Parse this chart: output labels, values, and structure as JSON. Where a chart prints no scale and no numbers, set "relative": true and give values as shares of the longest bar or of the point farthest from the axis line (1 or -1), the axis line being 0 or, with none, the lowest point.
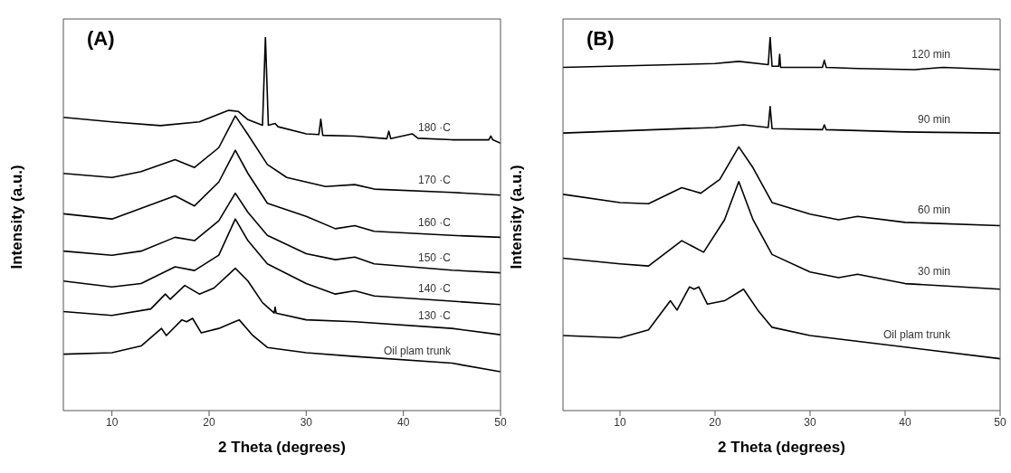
{
  "chart_data": [
    {
      "type": "line",
      "title": "(A)",
      "xlabel": "2 Theta (degrees)",
      "ylabel": "Intensity (a.u.)",
      "relative": true,
      "xlim": [
        5,
        50
      ],
      "xticks": [
        10,
        20,
        30,
        40,
        50
      ],
      "tick_labels": "x",
      "marker": "none",
      "line_style": "solid",
      "series": [
        {
          "name": "180 ·C",
          "color": "#000000",
          "x": [
            5,
            10,
            15,
            19,
            22,
            23,
            24,
            25.5,
            25.8,
            26.1,
            26.8,
            27.1,
            30,
            31.3,
            31.5,
            31.7,
            35,
            38.3,
            38.5,
            38.7,
            40.9,
            41.5,
            45,
            48.8,
            49,
            49.2,
            50
          ],
          "values": [
            0.785,
            0.773,
            0.763,
            0.773,
            0.804,
            0.801,
            0.779,
            0.764,
            1.0,
            0.764,
            0.769,
            0.76,
            0.741,
            0.739,
            0.78,
            0.737,
            0.735,
            0.728,
            0.748,
            0.728,
            0.741,
            0.729,
            0.725,
            0.725,
            0.735,
            0.725,
            0.716
          ]
        },
        {
          "name": "170 ·C",
          "color": "#000000",
          "x": [
            5,
            10,
            13,
            16.5,
            18.5,
            21,
            22.7,
            24,
            26,
            28,
            32,
            35,
            37,
            45,
            50
          ],
          "values": [
            0.635,
            0.624,
            0.64,
            0.672,
            0.651,
            0.704,
            0.789,
            0.739,
            0.659,
            0.624,
            0.6,
            0.605,
            0.593,
            0.584,
            0.577
          ]
        },
        {
          "name": "160 ·C",
          "color": "#000000",
          "x": [
            5,
            10,
            16.5,
            18.5,
            21,
            22.7,
            24,
            26,
            30,
            33,
            35,
            37,
            45,
            50
          ],
          "values": [
            0.527,
            0.513,
            0.575,
            0.548,
            0.612,
            0.697,
            0.635,
            0.555,
            0.52,
            0.487,
            0.495,
            0.48,
            0.469,
            0.464
          ]
        },
        {
          "name": "150 ·C",
          "color": "#000000",
          "x": [
            5,
            10,
            13,
            16.5,
            18.5,
            21,
            22.7,
            24,
            26,
            30,
            33,
            35,
            37,
            45,
            50
          ],
          "values": [
            0.427,
            0.416,
            0.427,
            0.464,
            0.455,
            0.508,
            0.582,
            0.531,
            0.469,
            0.42,
            0.404,
            0.411,
            0.393,
            0.376,
            0.369
          ]
        },
        {
          "name": "140 ·C",
          "color": "#000000",
          "x": [
            5,
            10,
            13,
            16.5,
            18.5,
            21,
            22.7,
            24,
            26,
            30,
            33,
            35,
            37,
            45,
            50
          ],
          "values": [
            0.347,
            0.331,
            0.34,
            0.385,
            0.375,
            0.416,
            0.513,
            0.455,
            0.393,
            0.34,
            0.312,
            0.321,
            0.307,
            0.293,
            0.284
          ]
        },
        {
          "name": "130 ·C",
          "color": "#000000",
          "x": [
            5,
            10,
            14,
            15.5,
            16,
            17.5,
            19,
            20.5,
            22.7,
            24,
            25.5,
            26.7,
            26.8,
            26.9,
            30,
            35,
            45,
            50
          ],
          "values": [
            0.265,
            0.255,
            0.272,
            0.312,
            0.298,
            0.335,
            0.312,
            0.328,
            0.381,
            0.347,
            0.289,
            0.261,
            0.277,
            0.261,
            0.243,
            0.238,
            0.22,
            0.203
          ]
        },
        {
          "name": "Oil plam trunk",
          "color": "#000000",
          "x": [
            5,
            10,
            13,
            15.1,
            15.6,
            17.2,
            17.7,
            18.3,
            19.2,
            21,
            23.1,
            24.5,
            26,
            30,
            35,
            45,
            50
          ],
          "values": [
            0.151,
            0.155,
            0.173,
            0.22,
            0.201,
            0.243,
            0.238,
            0.247,
            0.208,
            0.22,
            0.243,
            0.201,
            0.169,
            0.155,
            0.145,
            0.127,
            0.104
          ]
        }
      ]
    },
    {
      "type": "line",
      "title": "(B)",
      "xlabel": "2 Theta (degrees)",
      "ylabel": "Intensity (a.u.)",
      "relative": true,
      "xlim": [
        4,
        50
      ],
      "xticks": [
        10,
        20,
        30,
        40,
        50
      ],
      "tick_labels": "x",
      "marker": "none",
      "line_style": "solid",
      "series": [
        {
          "name": "120 min",
          "color": "#000000",
          "x": [
            4,
            20,
            22.5,
            25.6,
            25.8,
            26.0,
            26.7,
            26.8,
            26.9,
            31.3,
            31.5,
            31.7,
            35,
            41,
            44,
            50
          ],
          "values": [
            0.919,
            0.929,
            0.935,
            0.926,
            1.0,
            0.922,
            0.922,
            0.954,
            0.919,
            0.919,
            0.938,
            0.919,
            0.916,
            0.913,
            0.919,
            0.913
          ]
        },
        {
          "name": "90 min",
          "color": "#000000",
          "x": [
            4,
            20,
            23,
            25.6,
            25.8,
            26.0,
            31.3,
            31.5,
            31.7,
            40,
            50
          ],
          "values": [
            0.743,
            0.758,
            0.765,
            0.758,
            0.814,
            0.755,
            0.752,
            0.765,
            0.752,
            0.746,
            0.743
          ]
        },
        {
          "name": "60 min",
          "color": "#000000",
          "x": [
            4,
            10,
            13,
            16.5,
            18.5,
            20.5,
            22.5,
            24,
            26,
            30,
            33,
            35,
            40,
            50
          ],
          "values": [
            0.579,
            0.557,
            0.554,
            0.597,
            0.582,
            0.619,
            0.706,
            0.65,
            0.557,
            0.526,
            0.511,
            0.52,
            0.504,
            0.495
          ]
        },
        {
          "name": "30 min",
          "color": "#000000",
          "x": [
            4,
            10,
            13,
            16.5,
            18.8,
            21,
            22.5,
            24,
            26,
            30,
            33,
            35,
            40,
            50
          ],
          "values": [
            0.408,
            0.393,
            0.387,
            0.455,
            0.424,
            0.511,
            0.613,
            0.511,
            0.418,
            0.371,
            0.356,
            0.365,
            0.34,
            0.325
          ]
        },
        {
          "name": "Oil plam trunk",
          "color": "#000000",
          "x": [
            4,
            10,
            13,
            15.3,
            16,
            17.3,
            17.8,
            18.3,
            19.2,
            21,
            23,
            24.5,
            26,
            30,
            40,
            50
          ],
          "values": [
            0.201,
            0.195,
            0.216,
            0.294,
            0.269,
            0.331,
            0.325,
            0.331,
            0.285,
            0.294,
            0.325,
            0.269,
            0.223,
            0.201,
            0.17,
            0.139
          ]
        }
      ]
    }
  ]
}
